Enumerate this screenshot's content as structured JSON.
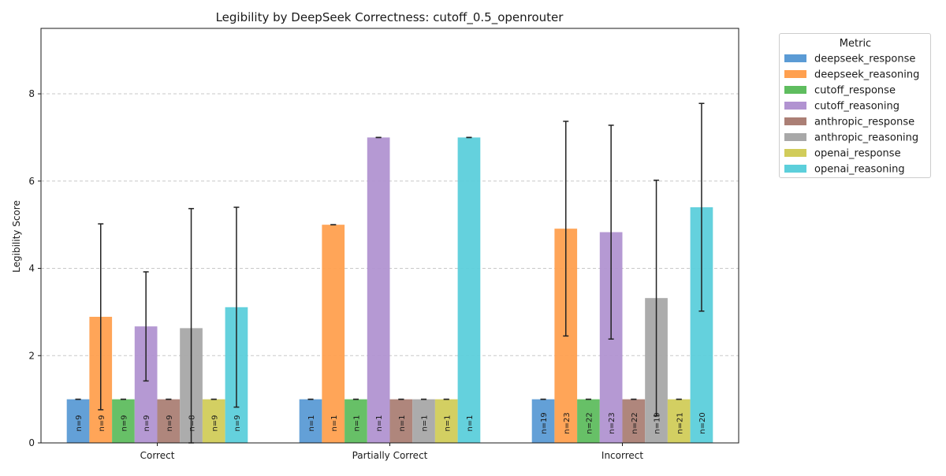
{
  "chart_data": {
    "type": "bar",
    "title": "Legibility by DeepSeek Correctness: cutoff_0.5_openrouter",
    "xlabel": "",
    "ylabel": "Legibility Score",
    "ylim": [
      0,
      9.5
    ],
    "yticks": [
      0,
      2,
      4,
      6,
      8
    ],
    "grid": true,
    "legend_title": "Metric",
    "legend_position": "outside-right",
    "categories": [
      "Correct",
      "Partially Correct",
      "Incorrect"
    ],
    "series": [
      {
        "name": "deepseek_response",
        "color": "#5b9bd5",
        "values": [
          1.0,
          1.0,
          1.0
        ],
        "err": [
          0,
          0,
          0
        ],
        "n": [
          "n=9",
          "n=1",
          "n=19"
        ]
      },
      {
        "name": "deepseek_reasoning",
        "color": "#ffa04f",
        "values": [
          2.89,
          5.0,
          4.91
        ],
        "err": [
          2.13,
          0,
          2.46
        ],
        "n": [
          "n=9",
          "n=1",
          "n=23"
        ]
      },
      {
        "name": "cutoff_response",
        "color": "#5fbd5f",
        "values": [
          1.0,
          1.0,
          1.0
        ],
        "err": [
          0,
          0,
          0
        ],
        "n": [
          "n=9",
          "n=1",
          "n=22"
        ]
      },
      {
        "name": "cutoff_reasoning",
        "color": "#b193d1",
        "values": [
          2.67,
          7.0,
          4.83
        ],
        "err": [
          1.25,
          0,
          2.45
        ],
        "n": [
          "n=9",
          "n=1",
          "n=23"
        ]
      },
      {
        "name": "anthropic_response",
        "color": "#ab7f75",
        "values": [
          1.0,
          1.0,
          1.0
        ],
        "err": [
          0,
          0,
          0
        ],
        "n": [
          "n=9",
          "n=1",
          "n=22"
        ]
      },
      {
        "name": "anthropic_reasoning",
        "color": "#a8a8a8",
        "values": [
          2.63,
          1.0,
          3.32
        ],
        "err": [
          2.74,
          0,
          2.7
        ],
        "n": [
          "n=8",
          "n=1",
          "n=19"
        ]
      },
      {
        "name": "openai_response",
        "color": "#d1cc5a",
        "values": [
          1.0,
          1.0,
          1.0
        ],
        "err": [
          0,
          0,
          0
        ],
        "n": [
          "n=9",
          "n=1",
          "n=21"
        ]
      },
      {
        "name": "openai_reasoning",
        "color": "#5ccfdb",
        "values": [
          3.11,
          7.0,
          5.4
        ],
        "err": [
          2.29,
          0,
          2.38
        ],
        "n": [
          "n=9",
          "n=1",
          "n=20"
        ]
      }
    ]
  }
}
